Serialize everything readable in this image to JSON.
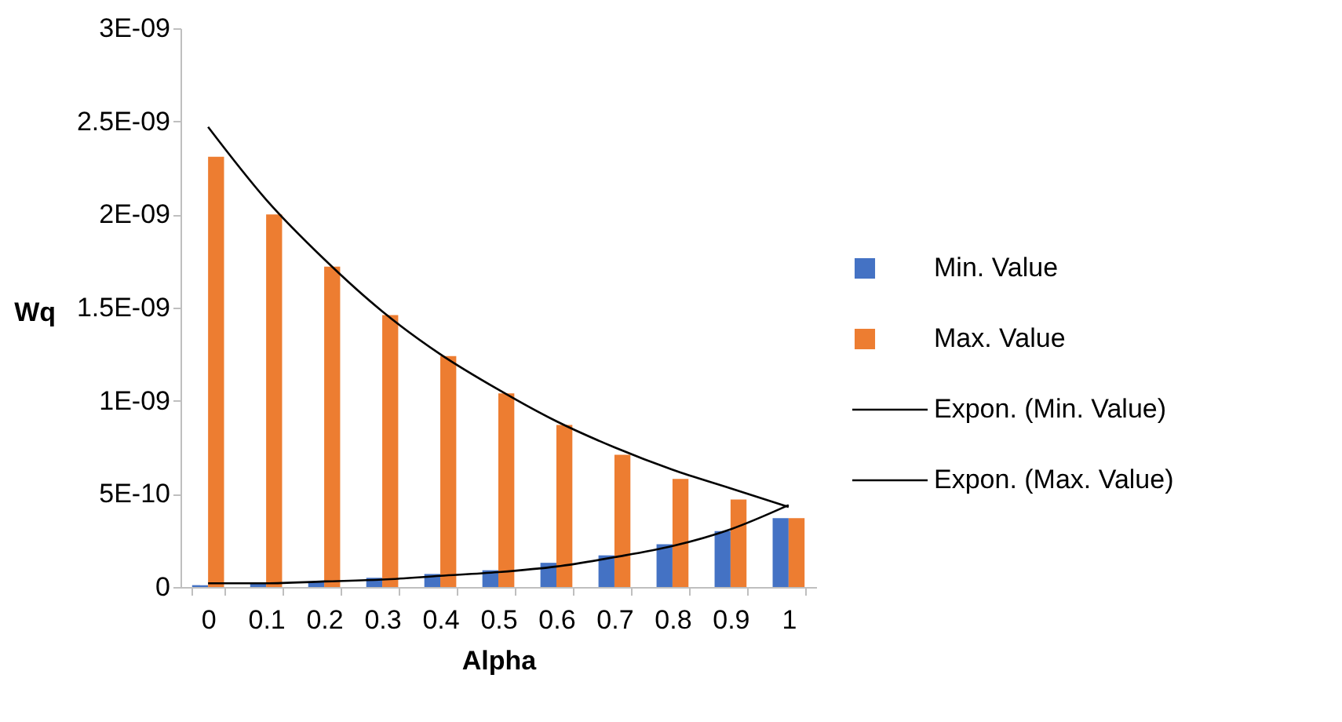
{
  "chart_data": {
    "type": "bar",
    "xlabel": "Alpha",
    "ylabel": "Wq",
    "categories": [
      "0",
      "0.1",
      "0.2",
      "0.3",
      "0.4",
      "0.5",
      "0.6",
      "0.7",
      "0.8",
      "0.9",
      "1"
    ],
    "series": [
      {
        "name": "Min. Value",
        "color": "#4472c4",
        "values": [
          1e-11,
          2e-11,
          3e-11,
          5e-11,
          7e-11,
          9e-11,
          1.3e-10,
          1.7e-10,
          2.3e-10,
          3e-10,
          3.7e-10
        ]
      },
      {
        "name": "Max. Value",
        "color": "#ed7d31",
        "values": [
          2.31e-09,
          2e-09,
          1.72e-09,
          1.46e-09,
          1.24e-09,
          1.04e-09,
          8.7e-10,
          7.1e-10,
          5.8e-10,
          4.7e-10,
          3.7e-10
        ]
      },
      {
        "name": "Expon. (Min. Value)",
        "type": "line",
        "color": "#000000",
        "values": [
          2e-11,
          2e-11,
          3e-11,
          4e-11,
          6e-11,
          8e-11,
          1.1e-10,
          1.6e-10,
          2.2e-10,
          3.1e-10,
          4.4e-10
        ]
      },
      {
        "name": "Expon. (Max. Value)",
        "type": "line",
        "color": "#000000",
        "values": [
          2.47e-09,
          2.08e-09,
          1.76e-09,
          1.48e-09,
          1.25e-09,
          1.06e-09,
          8.9e-10,
          7.5e-10,
          6.3e-10,
          5.3e-10,
          4.3e-10
        ]
      }
    ],
    "ylim": [
      0,
      3e-09
    ],
    "yticks": [
      {
        "value": 0,
        "label": "0"
      },
      {
        "value": 5e-10,
        "label": "5E-10"
      },
      {
        "value": 1e-09,
        "label": "1E-09"
      },
      {
        "value": 1.5e-09,
        "label": "1.5E-09"
      },
      {
        "value": 2e-09,
        "label": "2E-09"
      },
      {
        "value": 2.5e-09,
        "label": "2.5E-09"
      },
      {
        "value": 3e-09,
        "label": "3E-09"
      }
    ],
    "grid": false,
    "legend": "right"
  }
}
